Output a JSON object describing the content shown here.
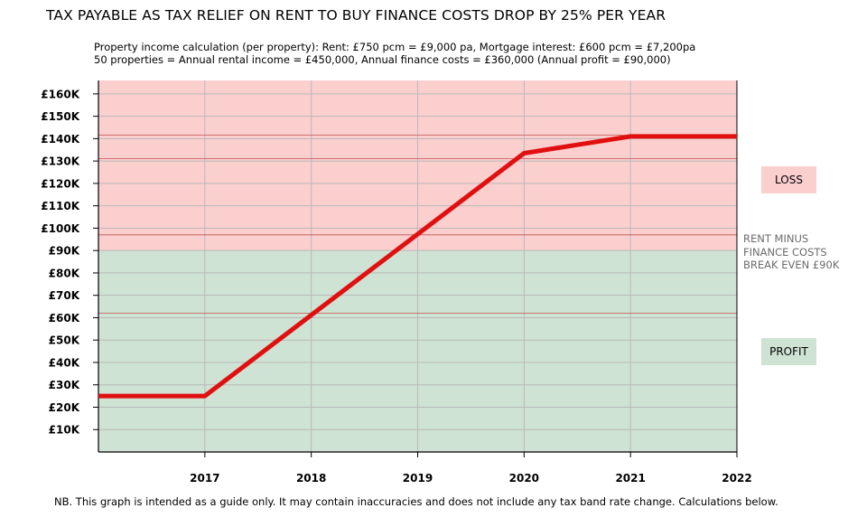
{
  "title": "TAX PAYABLE AS TAX RELIEF ON RENT TO BUY FINANCE COSTS DROP BY 25% PER YEAR",
  "subtitle_line1": "Property income calculation (per property):  Rent: £750 pcm = £9,000 pa,  Mortgage interest: £600 pcm = £7,200pa",
  "subtitle_line2": "50 properties = Annual rental income = £450,000, Annual finance costs = £360,000  (Annual profit = £90,000)",
  "footnote": "NB. This graph is intended as a guide only. It may contain inaccuracies and does not include any tax band rate change.  Calculations below.",
  "labels": {
    "loss": "LOSS",
    "profit": "PROFIT",
    "breakeven_line1": "RENT MINUS",
    "breakeven_line2": "FINANCE COSTS",
    "breakeven_line3": "BREAK EVEN £90K"
  },
  "colors": {
    "loss_zone": "#fccfcf",
    "profit_zone": "#cfe3d4",
    "series_line": "#e01010",
    "grid": "#b8b8b8",
    "ref_line": "#c05050"
  },
  "chart_data": {
    "type": "line",
    "x_ticks": [
      "2017",
      "2018",
      "2019",
      "2020",
      "2021",
      "2022"
    ],
    "y_ticks": [
      "£10K",
      "£20K",
      "£30K",
      "£40K",
      "£50K",
      "£60K",
      "£70K",
      "£80K",
      "£90K",
      "£100K",
      "£110K",
      "£120K",
      "£130K",
      "£140K",
      "£150K",
      "£160K"
    ],
    "xlim": [
      2016,
      2022
    ],
    "ylim": [
      0,
      166000
    ],
    "break_even": 90000,
    "reference_lines": [
      62000,
      97000,
      131000,
      141500
    ],
    "series": [
      {
        "x": [
          2016,
          2017,
          2020,
          2021,
          2022
        ],
        "y": [
          25000,
          25000,
          133500,
          141000,
          141000
        ]
      }
    ],
    "grid": true
  }
}
